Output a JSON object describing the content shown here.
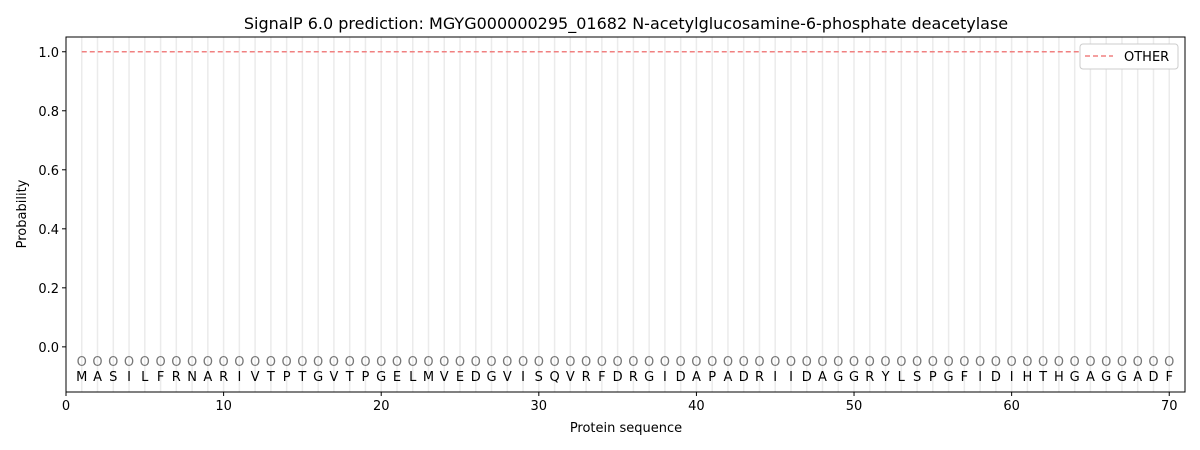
{
  "chart_data": {
    "type": "line",
    "title": "SignalP 6.0 prediction: MGYG000000295_01682 N-acetylglucosamine-6-phosphate deacetylase",
    "xlabel": "Protein sequence",
    "ylabel": "Probability",
    "xlim": [
      0,
      71
    ],
    "ylim": [
      -0.153,
      1.05
    ],
    "xticks": [
      0,
      10,
      20,
      30,
      40,
      50,
      60,
      70
    ],
    "yticks": [
      0.0,
      0.2,
      0.4,
      0.6,
      0.8,
      1.0
    ],
    "ytick_labels": [
      "0.0",
      "0.2",
      "0.4",
      "0.6",
      "0.8",
      "1.0"
    ],
    "grid": "vertical lines at each residue",
    "legend_position": "top-right",
    "sequence": [
      "M",
      "A",
      "S",
      "I",
      "L",
      "F",
      "R",
      "N",
      "A",
      "R",
      "I",
      "V",
      "T",
      "P",
      "T",
      "G",
      "V",
      "T",
      "P",
      "G",
      "E",
      "L",
      "M",
      "V",
      "E",
      "D",
      "G",
      "V",
      "I",
      "S",
      "Q",
      "V",
      "R",
      "F",
      "D",
      "R",
      "G",
      "I",
      "D",
      "A",
      "P",
      "A",
      "D",
      "R",
      "I",
      "I",
      "D",
      "A",
      "G",
      "G",
      "R",
      "Y",
      "L",
      "S",
      "P",
      "G",
      "F",
      "I",
      "D",
      "I",
      "H",
      "T",
      "H",
      "G",
      "A",
      "G",
      "G",
      "A",
      "D",
      "F"
    ],
    "region_label": "O",
    "series": [
      {
        "name": "OTHER",
        "color": "#f08080",
        "style": "dashed",
        "x_range": [
          1,
          70
        ],
        "value": 1.0
      }
    ]
  }
}
